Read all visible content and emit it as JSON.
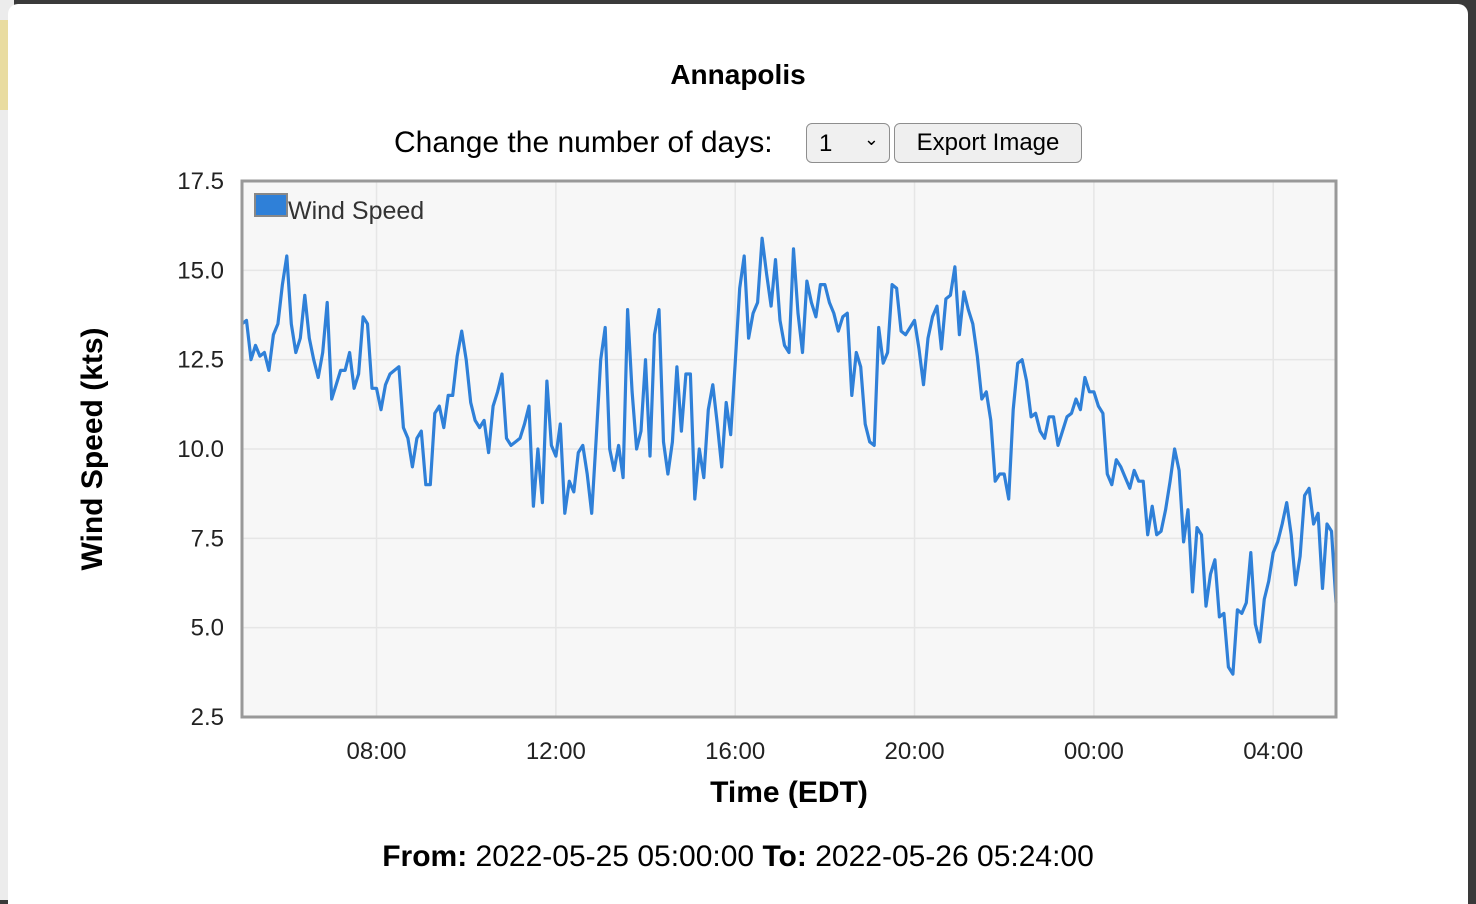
{
  "title": "Annapolis",
  "controls": {
    "days_label": "Change the number of days:",
    "days_value": "1",
    "days_options": [
      "1"
    ],
    "export_label": "Export Image"
  },
  "range": {
    "from_label": "From:",
    "from_value": "2022-05-25 05:00:00",
    "to_label": "To:",
    "to_value": "2022-05-26 05:24:00"
  },
  "colors": {
    "series": "#2f80d8",
    "frame": "#999999",
    "plot_bg": "#f7f7f7",
    "grid": "#e6e6e6"
  },
  "chart_data": {
    "type": "line",
    "title": "Annapolis",
    "xlabel": "Time (EDT)",
    "ylabel": "Wind Speed (kts)",
    "ylim": [
      2.5,
      17.5
    ],
    "yticks": [
      "2.5",
      "5.0",
      "7.5",
      "10.0",
      "12.5",
      "15.0",
      "17.5"
    ],
    "xlim": [
      "2022-05-25 05:00",
      "2022-05-26 05:24"
    ],
    "xticks": [
      {
        "t": "2022-05-25 08:00",
        "label": "08:00"
      },
      {
        "t": "2022-05-25 12:00",
        "label": "12:00"
      },
      {
        "t": "2022-05-25 16:00",
        "label": "16:00"
      },
      {
        "t": "2022-05-25 20:00",
        "label": "20:00"
      },
      {
        "t": "2022-05-26 00:00",
        "label": "00:00"
      },
      {
        "t": "2022-05-26 04:00",
        "label": "04:00"
      }
    ],
    "grid": true,
    "legend": "top-left",
    "series": [
      {
        "name": "Wind Speed",
        "x": [
          "2022-05-25 05:00",
          "2022-05-25 05:06",
          "2022-05-25 05:12",
          "2022-05-25 05:18",
          "2022-05-25 05:24",
          "2022-05-25 05:30",
          "2022-05-25 05:36",
          "2022-05-25 05:42",
          "2022-05-25 05:48",
          "2022-05-25 05:54",
          "2022-05-25 06:00",
          "2022-05-25 06:06",
          "2022-05-25 06:12",
          "2022-05-25 06:18",
          "2022-05-25 06:24",
          "2022-05-25 06:30",
          "2022-05-25 06:36",
          "2022-05-25 06:42",
          "2022-05-25 06:48",
          "2022-05-25 06:54",
          "2022-05-25 07:00",
          "2022-05-25 07:06",
          "2022-05-25 07:12",
          "2022-05-25 07:18",
          "2022-05-25 07:24",
          "2022-05-25 07:30",
          "2022-05-25 07:36",
          "2022-05-25 07:42",
          "2022-05-25 07:48",
          "2022-05-25 07:54",
          "2022-05-25 08:00",
          "2022-05-25 08:06",
          "2022-05-25 08:12",
          "2022-05-25 08:18",
          "2022-05-25 08:24",
          "2022-05-25 08:30",
          "2022-05-25 08:36",
          "2022-05-25 08:42",
          "2022-05-25 08:48",
          "2022-05-25 08:54",
          "2022-05-25 09:00",
          "2022-05-25 09:06",
          "2022-05-25 09:12",
          "2022-05-25 09:18",
          "2022-05-25 09:24",
          "2022-05-25 09:30",
          "2022-05-25 09:36",
          "2022-05-25 09:42",
          "2022-05-25 09:48",
          "2022-05-25 09:54",
          "2022-05-25 10:00",
          "2022-05-25 10:06",
          "2022-05-25 10:12",
          "2022-05-25 10:18",
          "2022-05-25 10:24",
          "2022-05-25 10:30",
          "2022-05-25 10:36",
          "2022-05-25 10:42",
          "2022-05-25 10:48",
          "2022-05-25 10:54",
          "2022-05-25 11:00",
          "2022-05-25 11:06",
          "2022-05-25 11:12",
          "2022-05-25 11:18",
          "2022-05-25 11:24",
          "2022-05-25 11:30",
          "2022-05-25 11:36",
          "2022-05-25 11:42",
          "2022-05-25 11:48",
          "2022-05-25 11:54",
          "2022-05-25 12:00",
          "2022-05-25 12:06",
          "2022-05-25 12:12",
          "2022-05-25 12:18",
          "2022-05-25 12:24",
          "2022-05-25 12:30",
          "2022-05-25 12:36",
          "2022-05-25 12:42",
          "2022-05-25 12:48",
          "2022-05-25 12:54",
          "2022-05-25 13:00",
          "2022-05-25 13:06",
          "2022-05-25 13:12",
          "2022-05-25 13:18",
          "2022-05-25 13:24",
          "2022-05-25 13:30",
          "2022-05-25 13:36",
          "2022-05-25 13:42",
          "2022-05-25 13:48",
          "2022-05-25 13:54",
          "2022-05-25 14:00",
          "2022-05-25 14:06",
          "2022-05-25 14:12",
          "2022-05-25 14:18",
          "2022-05-25 14:24",
          "2022-05-25 14:30",
          "2022-05-25 14:36",
          "2022-05-25 14:42",
          "2022-05-25 14:48",
          "2022-05-25 14:54",
          "2022-05-25 15:00",
          "2022-05-25 15:06",
          "2022-05-25 15:12",
          "2022-05-25 15:18",
          "2022-05-25 15:24",
          "2022-05-25 15:30",
          "2022-05-25 15:36",
          "2022-05-25 15:42",
          "2022-05-25 15:48",
          "2022-05-25 15:54",
          "2022-05-25 16:00",
          "2022-05-25 16:06",
          "2022-05-25 16:12",
          "2022-05-25 16:18",
          "2022-05-25 16:24",
          "2022-05-25 16:30",
          "2022-05-25 16:36",
          "2022-05-25 16:42",
          "2022-05-25 16:48",
          "2022-05-25 16:54",
          "2022-05-25 17:00",
          "2022-05-25 17:06",
          "2022-05-25 17:12",
          "2022-05-25 17:18",
          "2022-05-25 17:24",
          "2022-05-25 17:30",
          "2022-05-25 17:36",
          "2022-05-25 17:42",
          "2022-05-25 17:48",
          "2022-05-25 17:54",
          "2022-05-25 18:00",
          "2022-05-25 18:06",
          "2022-05-25 18:12",
          "2022-05-25 18:18",
          "2022-05-25 18:24",
          "2022-05-25 18:30",
          "2022-05-25 18:36",
          "2022-05-25 18:42",
          "2022-05-25 18:48",
          "2022-05-25 18:54",
          "2022-05-25 19:00",
          "2022-05-25 19:06",
          "2022-05-25 19:12",
          "2022-05-25 19:18",
          "2022-05-25 19:24",
          "2022-05-25 19:30",
          "2022-05-25 19:36",
          "2022-05-25 19:42",
          "2022-05-25 19:48",
          "2022-05-25 19:54",
          "2022-05-25 20:00",
          "2022-05-25 20:06",
          "2022-05-25 20:12",
          "2022-05-25 20:18",
          "2022-05-25 20:24",
          "2022-05-25 20:30",
          "2022-05-25 20:36",
          "2022-05-25 20:42",
          "2022-05-25 20:48",
          "2022-05-25 20:54",
          "2022-05-25 21:00",
          "2022-05-25 21:06",
          "2022-05-25 21:12",
          "2022-05-25 21:18",
          "2022-05-25 21:24",
          "2022-05-25 21:30",
          "2022-05-25 21:36",
          "2022-05-25 21:42",
          "2022-05-25 21:48",
          "2022-05-25 21:54",
          "2022-05-25 22:00",
          "2022-05-25 22:06",
          "2022-05-25 22:12",
          "2022-05-25 22:18",
          "2022-05-25 22:24",
          "2022-05-25 22:30",
          "2022-05-25 22:36",
          "2022-05-25 22:42",
          "2022-05-25 22:48",
          "2022-05-25 22:54",
          "2022-05-25 23:00",
          "2022-05-25 23:06",
          "2022-05-25 23:12",
          "2022-05-25 23:18",
          "2022-05-25 23:24",
          "2022-05-25 23:30",
          "2022-05-25 23:36",
          "2022-05-25 23:42",
          "2022-05-25 23:48",
          "2022-05-25 23:54",
          "2022-05-26 00:00",
          "2022-05-26 00:06",
          "2022-05-26 00:12",
          "2022-05-26 00:18",
          "2022-05-26 00:24",
          "2022-05-26 00:30",
          "2022-05-26 00:36",
          "2022-05-26 00:42",
          "2022-05-26 00:48",
          "2022-05-26 00:54",
          "2022-05-26 01:00",
          "2022-05-26 01:06",
          "2022-05-26 01:12",
          "2022-05-26 01:18",
          "2022-05-26 01:24",
          "2022-05-26 01:30",
          "2022-05-26 01:36",
          "2022-05-26 01:42",
          "2022-05-26 01:48",
          "2022-05-26 01:54",
          "2022-05-26 02:00",
          "2022-05-26 02:06",
          "2022-05-26 02:12",
          "2022-05-26 02:18",
          "2022-05-26 02:24",
          "2022-05-26 02:30",
          "2022-05-26 02:36",
          "2022-05-26 02:42",
          "2022-05-26 02:48",
          "2022-05-26 02:54",
          "2022-05-26 03:00",
          "2022-05-26 03:06",
          "2022-05-26 03:12",
          "2022-05-26 03:18",
          "2022-05-26 03:24",
          "2022-05-26 03:30",
          "2022-05-26 03:36",
          "2022-05-26 03:42",
          "2022-05-26 03:48",
          "2022-05-26 03:54",
          "2022-05-26 04:00",
          "2022-05-26 04:06",
          "2022-05-26 04:12",
          "2022-05-26 04:18",
          "2022-05-26 04:24",
          "2022-05-26 04:30",
          "2022-05-26 04:36",
          "2022-05-26 04:42",
          "2022-05-26 04:48",
          "2022-05-26 04:54",
          "2022-05-26 05:00",
          "2022-05-26 05:06",
          "2022-05-26 05:12",
          "2022-05-26 05:18",
          "2022-05-26 05:24"
        ],
        "y": [
          13.5,
          13.6,
          12.5,
          12.9,
          12.6,
          12.7,
          12.2,
          13.2,
          13.5,
          14.6,
          15.4,
          13.5,
          12.7,
          13.1,
          14.3,
          13.1,
          12.5,
          12.0,
          12.7,
          14.1,
          11.4,
          11.8,
          12.2,
          12.2,
          12.7,
          11.7,
          12.1,
          13.7,
          13.5,
          11.7,
          11.7,
          11.1,
          11.8,
          12.1,
          12.2,
          12.3,
          10.6,
          10.3,
          9.5,
          10.3,
          10.5,
          9.0,
          9.0,
          11.0,
          11.2,
          10.6,
          11.5,
          11.5,
          12.6,
          13.3,
          12.5,
          11.3,
          10.8,
          10.6,
          10.8,
          9.9,
          11.2,
          11.6,
          12.1,
          10.3,
          10.1,
          10.2,
          10.3,
          10.7,
          11.2,
          8.4,
          10.0,
          8.5,
          11.9,
          10.1,
          9.8,
          10.7,
          8.2,
          9.1,
          8.8,
          9.9,
          10.1,
          9.3,
          8.2,
          10.3,
          12.5,
          13.4,
          10.0,
          9.4,
          10.1,
          9.2,
          13.9,
          11.6,
          10.0,
          10.5,
          12.5,
          9.8,
          13.2,
          13.9,
          10.2,
          9.3,
          10.2,
          12.3,
          10.5,
          12.1,
          12.1,
          8.6,
          10.0,
          9.2,
          11.1,
          11.8,
          10.7,
          9.5,
          11.3,
          10.4,
          12.4,
          14.5,
          15.4,
          13.1,
          13.8,
          14.1,
          15.9,
          14.9,
          14.0,
          15.3,
          13.6,
          12.9,
          12.7,
          15.6,
          13.8,
          12.7,
          14.7,
          14.1,
          13.7,
          14.6,
          14.6,
          14.1,
          13.8,
          13.3,
          13.7,
          13.8,
          11.5,
          12.7,
          12.3,
          10.7,
          10.2,
          10.1,
          13.4,
          12.4,
          12.7,
          14.6,
          14.5,
          13.3,
          13.2,
          13.4,
          13.6,
          12.8,
          11.8,
          13.1,
          13.7,
          14.0,
          12.8,
          14.2,
          14.3,
          15.1,
          13.2,
          14.4,
          13.9,
          13.5,
          12.6,
          11.4,
          11.6,
          10.8,
          9.1,
          9.3,
          9.3,
          8.6,
          11.1,
          12.4,
          12.5,
          11.9,
          10.9,
          11.0,
          10.5,
          10.3,
          10.9,
          10.9,
          10.1,
          10.5,
          10.9,
          11.0,
          11.4,
          11.1,
          12.0,
          11.6,
          11.6,
          11.2,
          11.0,
          9.3,
          9.0,
          9.7,
          9.5,
          9.2,
          8.9,
          9.4,
          9.1,
          9.1,
          7.6,
          8.4,
          7.6,
          7.7,
          8.3,
          9.1,
          10.0,
          9.4,
          7.4,
          8.3,
          6.0,
          7.8,
          7.6,
          5.6,
          6.5,
          6.9,
          5.3,
          5.4,
          3.9,
          3.7,
          5.5,
          5.4,
          5.7,
          7.1,
          5.1,
          4.6,
          5.8,
          6.3,
          7.1,
          7.4,
          7.9,
          8.5,
          7.6,
          6.2,
          7.0,
          8.7,
          8.9,
          7.9,
          8.2,
          6.1,
          7.9,
          7.7,
          5.7
        ]
      }
    ]
  }
}
